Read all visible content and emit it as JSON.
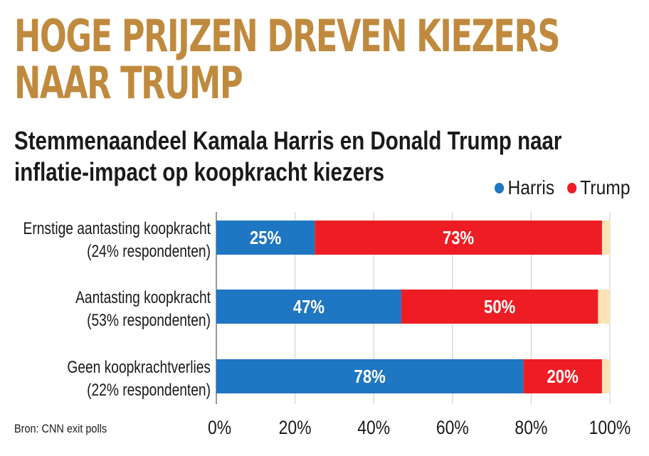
{
  "title_lines": [
    "HOGE PRIJZEN DREVEN KIEZERS",
    "NAAR TRUMP"
  ],
  "subtitle_lines": [
    "Stemmenaandeel Kamala Harris en Donald Trump naar",
    "inflatie-impact op koopkracht kiezers"
  ],
  "source": "Bron: CNN exit polls",
  "colors": {
    "title": "#c08a3e",
    "harris": "#1f76c2",
    "trump": "#ee1d24",
    "other": "#fbe3b6",
    "grid": "#c8c8c8"
  },
  "chart_data": {
    "type": "bar",
    "orientation": "horizontal",
    "stacked": true,
    "categories": [
      {
        "label": "Ernstige aantasting koopkracht",
        "sublabel": "(24% respondenten)"
      },
      {
        "label": "Aantasting koopkracht",
        "sublabel": "(53% respondenten)"
      },
      {
        "label": "Geen koopkrachtverlies",
        "sublabel": "(22% respondenten)"
      }
    ],
    "series": [
      {
        "name": "Harris",
        "values": [
          25,
          47,
          78
        ],
        "labels": [
          "25%",
          "47%",
          "78%"
        ],
        "color": "#1f76c2"
      },
      {
        "name": "Trump",
        "values": [
          73,
          50,
          20
        ],
        "labels": [
          "73%",
          "50%",
          "20%"
        ],
        "color": "#ee1d24"
      },
      {
        "values": [
          2,
          3,
          2
        ],
        "color": "#fbe3b6"
      }
    ],
    "xlim": [
      0,
      100
    ],
    "xticks": [
      "0%",
      "20%",
      "40%",
      "60%",
      "80%",
      "100%"
    ],
    "grid": true,
    "legend": "top-right"
  }
}
